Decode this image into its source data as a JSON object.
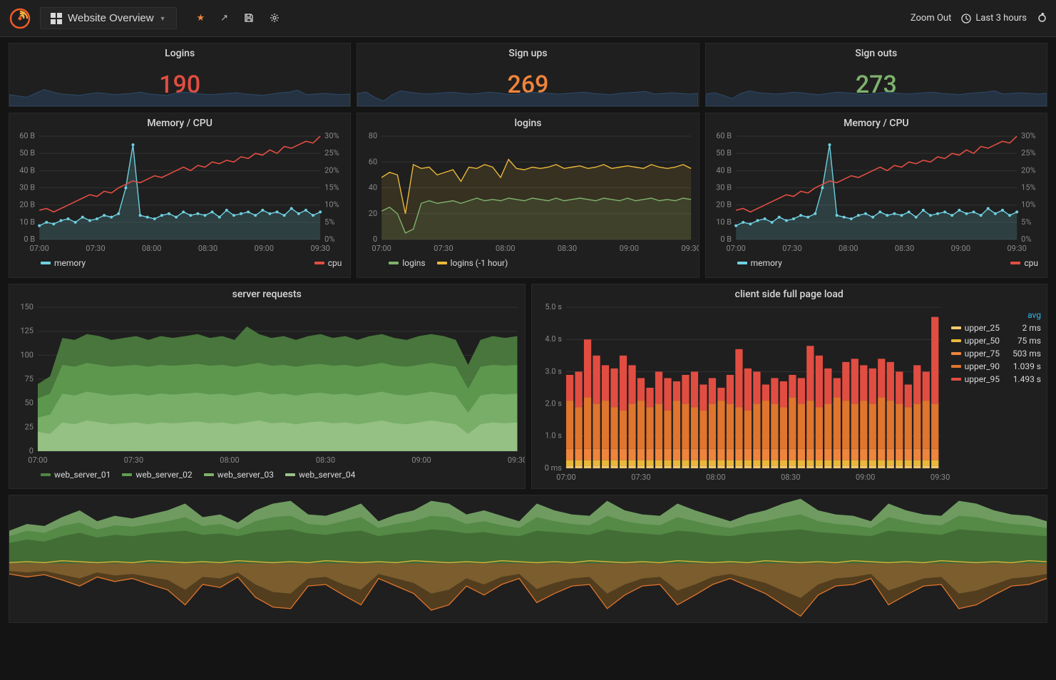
{
  "header": {
    "dashboard_name": "Website Overview",
    "zoom_out": "Zoom Out",
    "time_range": "Last 3 hours"
  },
  "colors": {
    "bg": "#141414",
    "panel": "#1f1f1f",
    "red": "#e24d42",
    "green": "#7eb26d",
    "orange": "#ef843c",
    "cyan": "#6ed0e0",
    "yellow": "#eab839",
    "dark_blue": "#2d4a6b",
    "green1": "#629e51",
    "green2": "#7eb26d",
    "green3": "#9ac48a",
    "green4": "#b7dbab",
    "bar_yellow": "#eab839",
    "bar_orange_l": "#ef843c",
    "bar_orange": "#e0752d",
    "bar_red_l": "#e24d42",
    "bar_red": "#bf1b00",
    "f_green1": "#3f6833",
    "f_green2": "#508642",
    "f_green3": "#629e51",
    "f_green4": "#7eb26d",
    "f_brown1": "#58401e",
    "f_brown2": "#806030",
    "f_orange": "#e0752d"
  },
  "stats": [
    {
      "title": "Logins",
      "value": "190",
      "color": "#e24d42",
      "spark": [
        18,
        16,
        14,
        20,
        26,
        22,
        19,
        18,
        17,
        19,
        21,
        20,
        18,
        19,
        20,
        22,
        19,
        18,
        17,
        20,
        22,
        21,
        19,
        18,
        19,
        20,
        21,
        19,
        18,
        17,
        19,
        21,
        22,
        25,
        18,
        19,
        20,
        19,
        18,
        19
      ]
    },
    {
      "title": "Sign ups",
      "value": "269",
      "color": "#ef843c",
      "spark": [
        20,
        22,
        14,
        8,
        18,
        24,
        22,
        20,
        19,
        20,
        21,
        22,
        20,
        19,
        20,
        22,
        21,
        19,
        18,
        20,
        22,
        21,
        20,
        19,
        20,
        21,
        22,
        20,
        19,
        18,
        20,
        21,
        22,
        23,
        19,
        20,
        21,
        20,
        19,
        20
      ]
    },
    {
      "title": "Sign outs",
      "value": "273",
      "color": "#7eb26d",
      "spark": [
        19,
        21,
        17,
        12,
        20,
        24,
        21,
        20,
        19,
        20,
        22,
        21,
        19,
        18,
        20,
        22,
        21,
        20,
        18,
        19,
        21,
        22,
        20,
        19,
        20,
        21,
        22,
        20,
        19,
        18,
        20,
        21,
        22,
        24,
        19,
        20,
        21,
        20,
        19,
        20
      ]
    }
  ],
  "time_ticks": [
    "07:00",
    "07:30",
    "08:00",
    "08:30",
    "09:00",
    "09:30"
  ],
  "memcpu": {
    "title": "Memory / CPU",
    "y_left": [
      "0 B",
      "10 B",
      "20 B",
      "30 B",
      "40 B",
      "50 B",
      "60 B"
    ],
    "y_right": [
      "0%",
      "5%",
      "10%",
      "15%",
      "20%",
      "25%",
      "30%"
    ],
    "cpu": [
      17,
      18,
      16,
      18,
      20,
      22,
      24,
      26,
      25,
      28,
      27,
      30,
      32,
      34,
      33,
      35,
      37,
      36,
      38,
      40,
      42,
      40,
      43,
      42,
      45,
      44,
      46,
      45,
      48,
      47,
      50,
      49,
      52,
      50,
      54,
      53,
      55,
      57,
      56,
      60
    ],
    "memory": [
      8,
      10,
      9,
      11,
      12,
      10,
      13,
      11,
      12,
      14,
      13,
      15,
      30,
      55,
      14,
      13,
      12,
      14,
      15,
      13,
      16,
      14,
      15,
      14,
      16,
      13,
      17,
      14,
      15,
      16,
      14,
      17,
      15,
      16,
      14,
      18,
      15,
      17,
      14,
      16
    ],
    "legend": [
      {
        "label": "memory",
        "color": "#6ed0e0"
      },
      {
        "label": "cpu",
        "color": "#e24d42"
      }
    ]
  },
  "logins_chart": {
    "title": "logins",
    "y": [
      "0",
      "20",
      "40",
      "60",
      "80"
    ],
    "logins": [
      22,
      25,
      20,
      5,
      8,
      28,
      30,
      28,
      29,
      30,
      28,
      30,
      32,
      30,
      31,
      30,
      32,
      31,
      30,
      32,
      31,
      30,
      32,
      30,
      31,
      32,
      31,
      30,
      32,
      31,
      30,
      32,
      30,
      31,
      32,
      30,
      31,
      30,
      32,
      31
    ],
    "logins_prev": [
      48,
      52,
      50,
      20,
      58,
      55,
      56,
      50,
      52,
      54,
      45,
      56,
      55,
      58,
      56,
      48,
      62,
      55,
      54,
      56,
      55,
      56,
      58,
      55,
      56,
      57,
      55,
      56,
      58,
      55,
      56,
      57,
      56,
      55,
      58,
      56,
      55,
      56,
      58,
      55
    ],
    "legend": [
      {
        "label": "logins",
        "color": "#7eb26d"
      },
      {
        "label": "logins (-1 hour)",
        "color": "#eab839"
      }
    ]
  },
  "server_req": {
    "title": "server requests",
    "y": [
      "0",
      "25",
      "50",
      "75",
      "100",
      "125",
      "150"
    ],
    "s1": [
      20,
      18,
      30,
      28,
      32,
      30,
      28,
      29,
      30,
      28,
      30,
      29,
      30,
      31,
      29,
      30,
      28,
      30,
      32,
      29,
      30,
      28,
      30,
      31,
      29,
      30,
      28,
      30,
      32,
      29,
      28,
      30,
      32,
      30,
      28,
      18,
      28,
      30,
      29,
      30
    ],
    "s2": [
      35,
      38,
      60,
      58,
      62,
      60,
      58,
      59,
      60,
      58,
      60,
      59,
      60,
      61,
      59,
      60,
      58,
      60,
      62,
      59,
      60,
      58,
      60,
      61,
      59,
      60,
      58,
      60,
      62,
      59,
      58,
      60,
      62,
      60,
      58,
      40,
      58,
      60,
      59,
      60
    ],
    "s3": [
      55,
      60,
      90,
      88,
      92,
      90,
      88,
      89,
      90,
      88,
      90,
      89,
      90,
      91,
      89,
      90,
      88,
      90,
      92,
      89,
      90,
      88,
      90,
      91,
      89,
      90,
      88,
      90,
      92,
      89,
      88,
      90,
      92,
      90,
      88,
      65,
      88,
      90,
      89,
      90
    ],
    "s4": [
      70,
      78,
      118,
      116,
      122,
      120,
      116,
      118,
      120,
      116,
      120,
      118,
      120,
      122,
      118,
      120,
      116,
      130,
      122,
      118,
      120,
      116,
      120,
      122,
      118,
      120,
      116,
      120,
      122,
      118,
      116,
      120,
      122,
      120,
      116,
      90,
      116,
      120,
      118,
      120
    ],
    "legend": [
      {
        "label": "web_server_01",
        "color": "#508642"
      },
      {
        "label": "web_server_02",
        "color": "#629e51"
      },
      {
        "label": "web_server_03",
        "color": "#7eb26d"
      },
      {
        "label": "web_server_04",
        "color": "#9ac48a"
      }
    ]
  },
  "page_load": {
    "title": "client side full page load",
    "y": [
      "0 ms",
      "1.0 s",
      "2.0 s",
      "3.0 s",
      "4.0 s",
      "5.0 s"
    ],
    "bars_count": 42,
    "upper25": 0.08,
    "upper50": 0.25,
    "upper75": 0.6,
    "upper90": [
      2.1,
      1.9,
      2.2,
      2.0,
      2.1,
      1.9,
      1.8,
      2.0,
      2.1,
      1.9,
      2.0,
      1.8,
      2.1,
      2.0,
      1.9,
      1.8,
      2.0,
      2.1,
      2.0,
      1.9,
      1.8,
      2.0,
      2.1,
      2.0,
      1.9,
      2.2,
      2.0,
      2.1,
      1.9,
      2.0,
      2.2,
      2.1,
      2.0,
      2.1,
      2.0,
      2.2,
      2.1,
      2.0,
      1.9,
      2.0,
      2.1,
      2.0
    ],
    "upper95": [
      2.9,
      3.0,
      4.0,
      3.5,
      3.2,
      3.1,
      3.5,
      3.2,
      2.8,
      2.5,
      3.0,
      2.8,
      2.7,
      2.9,
      3.0,
      2.6,
      2.8,
      2.5,
      2.9,
      3.7,
      3.1,
      3.0,
      2.6,
      2.8,
      2.7,
      2.9,
      2.8,
      3.8,
      3.5,
      3.1,
      2.8,
      3.3,
      3.4,
      3.2,
      3.1,
      3.4,
      3.3,
      3.0,
      2.6,
      3.2,
      3.0,
      4.7
    ],
    "legend_header": "avg",
    "legend": [
      {
        "label": "upper_25",
        "color": "#f2c96d",
        "val": "2 ms"
      },
      {
        "label": "upper_50",
        "color": "#eab839",
        "val": "75 ms"
      },
      {
        "label": "upper_75",
        "color": "#ef843c",
        "val": "503 ms"
      },
      {
        "label": "upper_90",
        "color": "#e0752d",
        "val": "1.039 s"
      },
      {
        "label": "upper_95",
        "color": "#e24d42",
        "val": "1.493 s"
      }
    ]
  },
  "footer": {
    "greens": [
      [
        30,
        35,
        32,
        40,
        45,
        38,
        42,
        40,
        44,
        46,
        48,
        42,
        44,
        40,
        46,
        48,
        50,
        44,
        42,
        46,
        48,
        40,
        44,
        46,
        50,
        48,
        44,
        46,
        42,
        40,
        48,
        46,
        44,
        42,
        50,
        46,
        44,
        42,
        48,
        46,
        42,
        40,
        44,
        46,
        48,
        50,
        46,
        44,
        42,
        40,
        48,
        46,
        44,
        42,
        50,
        48,
        46,
        44,
        42,
        40
      ],
      [
        40,
        48,
        45,
        55,
        60,
        50,
        56,
        54,
        58,
        62,
        68,
        55,
        58,
        50,
        62,
        68,
        70,
        58,
        56,
        62,
        68,
        52,
        58,
        62,
        70,
        68,
        58,
        62,
        56,
        52,
        68,
        62,
        58,
        56,
        70,
        62,
        58,
        56,
        68,
        62,
        56,
        52,
        58,
        62,
        68,
        72,
        62,
        58,
        56,
        52,
        68,
        62,
        58,
        56,
        70,
        68,
        62,
        58,
        56,
        52
      ],
      [
        48,
        58,
        55,
        68,
        78,
        62,
        70,
        66,
        72,
        78,
        88,
        68,
        72,
        60,
        78,
        88,
        92,
        72,
        70,
        78,
        88,
        62,
        72,
        78,
        92,
        88,
        72,
        78,
        70,
        62,
        88,
        78,
        72,
        70,
        92,
        78,
        72,
        70,
        88,
        78,
        70,
        62,
        72,
        78,
        88,
        95,
        78,
        72,
        70,
        62,
        88,
        78,
        72,
        70,
        92,
        88,
        78,
        72,
        70,
        62
      ]
    ],
    "yellow": [
      5,
      6,
      5,
      7,
      6,
      5,
      6,
      5,
      7,
      6,
      5,
      6,
      5,
      7,
      6,
      5,
      6,
      5,
      7,
      6,
      5,
      6,
      5,
      7,
      6,
      5,
      6,
      5,
      7,
      6,
      5,
      6,
      5,
      7,
      6,
      5,
      6,
      5,
      7,
      6,
      5,
      6,
      5,
      7,
      6,
      5,
      6,
      5,
      7,
      6,
      5,
      6,
      5,
      7,
      6,
      5,
      6,
      5,
      7,
      6
    ],
    "browns": [
      [
        14,
        18,
        15,
        22,
        30,
        18,
        24,
        20,
        28,
        35,
        55,
        28,
        32,
        18,
        45,
        58,
        60,
        30,
        28,
        42,
        55,
        20,
        30,
        40,
        62,
        55,
        30,
        42,
        28,
        20,
        52,
        40,
        30,
        28,
        60,
        42,
        30,
        28,
        55,
        42,
        28,
        20,
        30,
        40,
        55,
        70,
        42,
        30,
        28,
        20,
        55,
        42,
        30,
        28,
        60,
        55,
        42,
        30,
        28,
        20
      ],
      [
        10,
        12,
        10,
        15,
        20,
        12,
        16,
        14,
        18,
        22,
        35,
        18,
        20,
        12,
        28,
        38,
        40,
        20,
        18,
        28,
        35,
        14,
        20,
        26,
        40,
        35,
        20,
        28,
        18,
        14,
        34,
        26,
        20,
        18,
        40,
        28,
        20,
        18,
        36,
        28,
        18,
        14,
        20,
        26,
        36,
        46,
        28,
        20,
        18,
        14,
        36,
        28,
        20,
        18,
        40,
        36,
        28,
        20,
        18,
        14
      ]
    ]
  }
}
